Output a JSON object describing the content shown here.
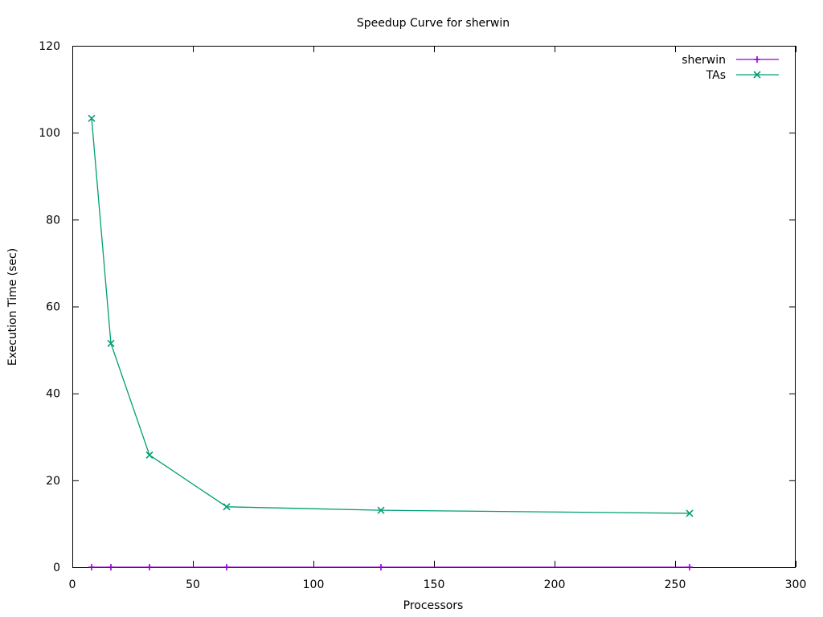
{
  "chart_data": {
    "type": "line",
    "title": "Speedup Curve for sherwin",
    "xlabel": "Processors",
    "ylabel": "Execution Time (sec)",
    "xlim": [
      0,
      300
    ],
    "ylim": [
      0,
      120
    ],
    "xticks": [
      0,
      50,
      100,
      150,
      200,
      250,
      300
    ],
    "yticks": [
      0,
      20,
      40,
      60,
      80,
      100,
      120
    ],
    "grid": false,
    "legend_position": "top-right",
    "series": [
      {
        "name": "sherwin",
        "color": "#9400d3",
        "marker": "plus",
        "x": [
          8,
          16,
          32,
          64,
          128,
          256
        ],
        "y": [
          0,
          0,
          0,
          0,
          0,
          0
        ]
      },
      {
        "name": "TAs",
        "color": "#009e73",
        "marker": "cross",
        "x": [
          8,
          16,
          32,
          64,
          128,
          256
        ],
        "y": [
          103.3,
          51.5,
          25.8,
          13.9,
          13.1,
          12.4
        ]
      }
    ]
  }
}
